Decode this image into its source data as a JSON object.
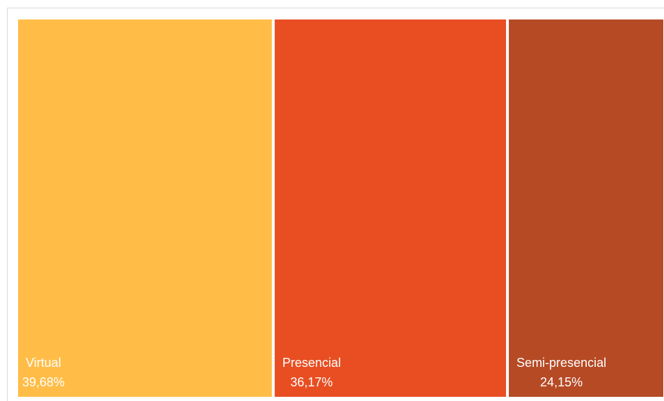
{
  "chart_data": {
    "type": "treemap",
    "categories": [
      "Virtual",
      "Presencial",
      "Semi-presencial"
    ],
    "values": [
      39.68,
      36.17,
      24.15
    ],
    "value_labels": [
      "39,68%",
      "36,17%",
      "24,15%"
    ],
    "colors": [
      "#FFBD47",
      "#E84E22",
      "#B54A25"
    ],
    "unit": "%"
  }
}
